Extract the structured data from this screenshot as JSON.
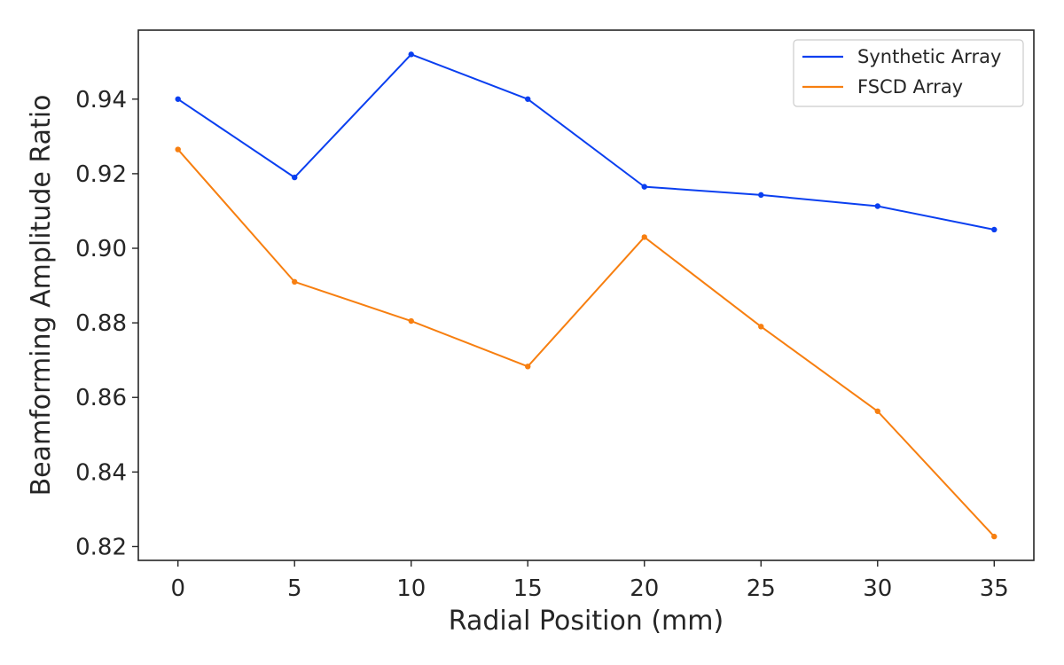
{
  "chart_data": {
    "type": "line",
    "title": "",
    "xlabel": "Radial Position (mm)",
    "ylabel": "Beamforming Amplitude Ratio",
    "x": [
      0,
      5,
      10,
      15,
      20,
      25,
      30,
      35
    ],
    "xticks": [
      "0",
      "5",
      "10",
      "15",
      "20",
      "25",
      "30",
      "35"
    ],
    "yticks": [
      "0.82",
      "0.84",
      "0.86",
      "0.88",
      "0.90",
      "0.92",
      "0.94"
    ],
    "xlim": [
      -1.7,
      36.7
    ],
    "ylim": [
      0.8163,
      0.9585
    ],
    "grid": false,
    "legend_position": "top-right",
    "series": [
      {
        "name": "Synthetic Array",
        "color": "#0a3ff0",
        "values": [
          0.94,
          0.919,
          0.952,
          0.94,
          0.9165,
          0.9143,
          0.9113,
          0.905
        ]
      },
      {
        "name": "FSCD Array",
        "color": "#f77f10",
        "values": [
          0.9265,
          0.891,
          0.8805,
          0.8683,
          0.903,
          0.879,
          0.8563,
          0.8227
        ]
      }
    ]
  }
}
